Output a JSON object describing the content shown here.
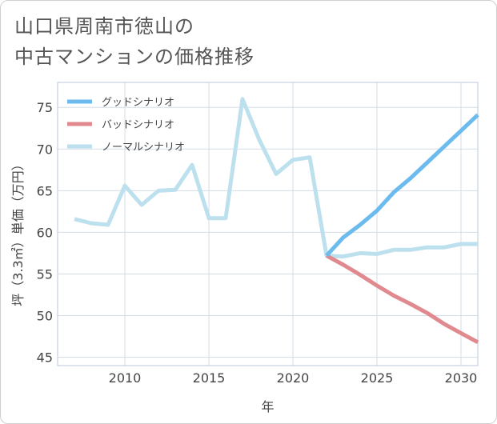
{
  "title": {
    "line1": "山口県周南市徳山の",
    "line2": "中古マンションの価格推移"
  },
  "chart_data": {
    "type": "line",
    "title": "山口県周南市徳山の中古マンションの価格推移",
    "xlabel": "年",
    "ylabel": "坪（3.3㎡）単価（万円）",
    "xlim": [
      2006,
      2031
    ],
    "ylim": [
      44,
      78
    ],
    "xticks": [
      2010,
      2015,
      2020,
      2025,
      2030
    ],
    "yticks": [
      45,
      50,
      55,
      60,
      65,
      70,
      75
    ],
    "grid": true,
    "legend_position": "top-left",
    "series": [
      {
        "name": "グッドシナリオ",
        "color": "#6bbbee",
        "x": [
          2022,
          2023,
          2024,
          2025,
          2026,
          2027,
          2028,
          2029,
          2030,
          2031
        ],
        "values": [
          57.2,
          59.4,
          60.9,
          62.6,
          64.8,
          66.5,
          68.4,
          70.3,
          72.2,
          74.1
        ]
      },
      {
        "name": "バッドシナリオ",
        "color": "#e08a8f",
        "x": [
          2022,
          2023,
          2024,
          2025,
          2026,
          2027,
          2028,
          2029,
          2030,
          2031
        ],
        "values": [
          57.2,
          56.1,
          54.9,
          53.6,
          52.4,
          51.4,
          50.3,
          49.0,
          47.9,
          46.8
        ]
      },
      {
        "name": "ノーマルシナリオ",
        "color": "#bde0ee",
        "x": [
          2007,
          2008,
          2009,
          2010,
          2011,
          2012,
          2013,
          2014,
          2015,
          2016,
          2017,
          2018,
          2019,
          2020,
          2021,
          2022,
          2023,
          2024,
          2025,
          2026,
          2027,
          2028,
          2029,
          2030,
          2031
        ],
        "values": [
          61.6,
          61.1,
          60.9,
          65.6,
          63.3,
          65.0,
          65.1,
          68.1,
          61.7,
          61.7,
          76.0,
          71.1,
          67.0,
          68.7,
          69.0,
          57.2,
          57.1,
          57.5,
          57.4,
          57.9,
          57.9,
          58.2,
          58.2,
          58.6,
          58.6
        ]
      }
    ]
  }
}
